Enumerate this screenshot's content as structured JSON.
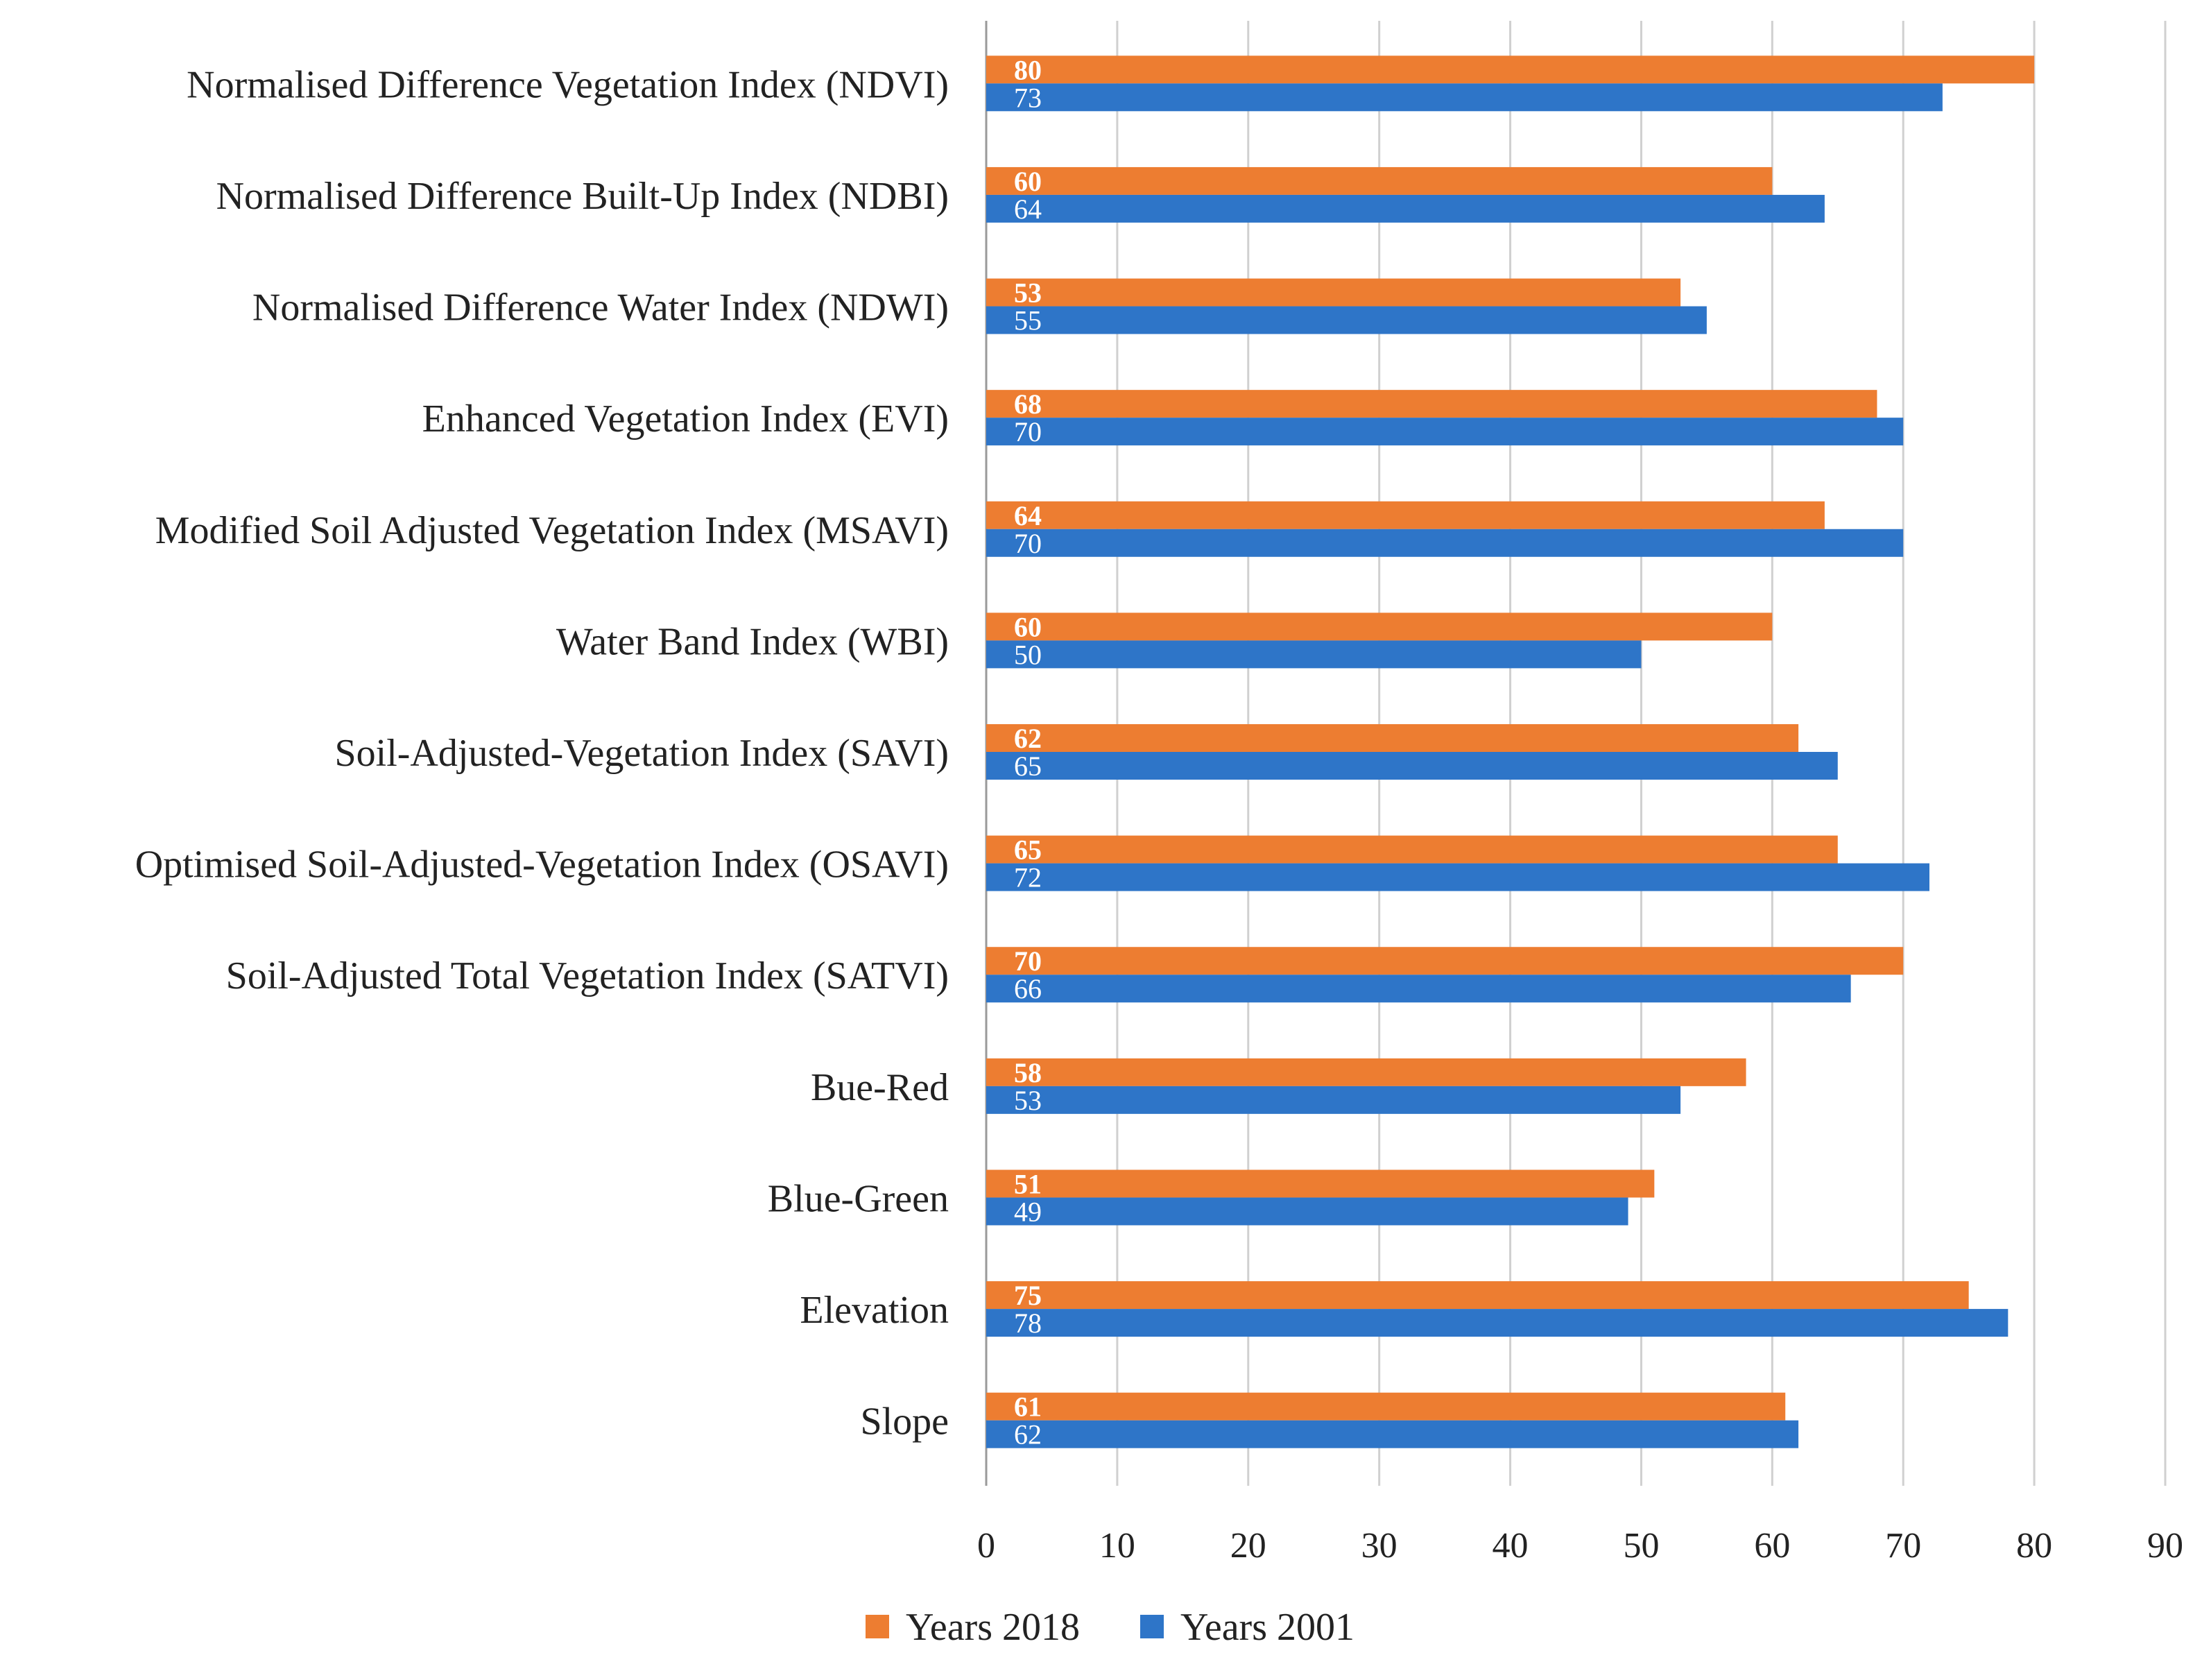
{
  "chart_data": {
    "type": "bar",
    "orientation": "horizontal",
    "title": "",
    "xlabel": "",
    "ylabel": "",
    "xlim": [
      0,
      90
    ],
    "x_ticks": [
      0,
      10,
      20,
      30,
      40,
      50,
      60,
      70,
      80,
      90
    ],
    "grid": "vertical",
    "legend_position": "bottom-center",
    "categories": [
      "Normalised Difference Vegetation Index (NDVI)",
      "Normalised Difference Built-Up Index (NDBI)",
      "Normalised Difference Water Index (NDWI)",
      "Enhanced Vegetation Index (EVI)",
      "Modified Soil Adjusted Vegetation Index (MSAVI)",
      "Water Band Index (WBI)",
      "Soil-Adjusted-Vegetation Index (SAVI)",
      "Optimised Soil-Adjusted-Vegetation Index (OSAVI)",
      "Soil-Adjusted Total Vegetation Index (SATVI)",
      "Bue-Red",
      "Blue-Green",
      "Elevation",
      "Slope"
    ],
    "series": [
      {
        "name": "Years 2018",
        "color": "#ED7D31",
        "values": [
          80,
          60,
          53,
          68,
          64,
          60,
          62,
          65,
          70,
          58,
          51,
          75,
          61
        ]
      },
      {
        "name": "Years 2001",
        "color": "#2E75C8",
        "values": [
          73,
          64,
          55,
          70,
          70,
          50,
          65,
          72,
          66,
          53,
          49,
          78,
          62
        ]
      }
    ]
  }
}
